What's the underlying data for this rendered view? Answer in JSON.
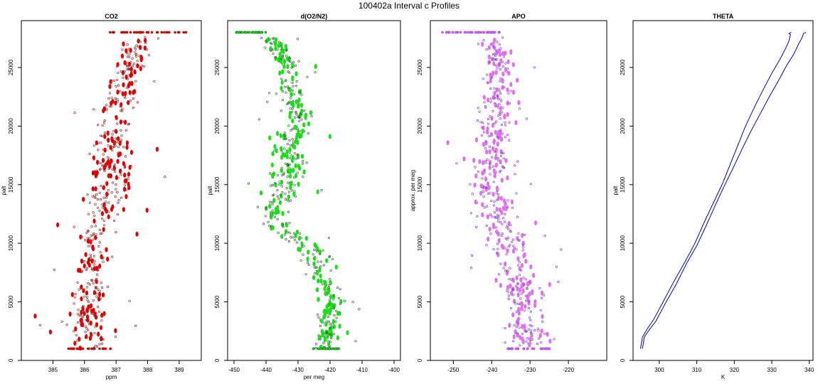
{
  "figure": {
    "title": "100402a   Interval c Profiles"
  },
  "chart_data": [
    {
      "type": "scatter",
      "title": "CO2",
      "xlabel": "ppm",
      "ylabel": "palt",
      "xlim": [
        384.0,
        389.7
      ],
      "ylim": [
        0,
        29000
      ],
      "xticks": [
        385,
        386,
        387,
        388,
        389
      ],
      "xtick_labels": [
        "385",
        "386",
        "387",
        "388",
        "389"
      ],
      "yticks": [
        0,
        5000,
        10000,
        15000,
        20000,
        25000
      ],
      "ytick_labels": [
        "0",
        "5000",
        "10000",
        "15000",
        "20000",
        "25000"
      ],
      "series": [
        {
          "style": "points",
          "color": "#e80000",
          "edge": "#8b1a1a",
          "bands": [
            [
              1000,
              385.4,
              386.9
            ],
            [
              5000,
              385.2,
              386.8
            ],
            [
              10000,
              385.7,
              387.0
            ],
            [
              15000,
              386.0,
              387.7
            ],
            [
              20000,
              386.2,
              387.6
            ],
            [
              25000,
              386.9,
              388.0
            ],
            [
              27500,
              387.1,
              388.4
            ]
          ],
          "top_layer": {
            "y": 28000,
            "x_min": 386.8,
            "x_max": 389.3
          }
        }
      ]
    },
    {
      "type": "scatter",
      "title": "d(O2/N2)",
      "xlabel": "per meg",
      "ylabel": "palt",
      "xlim": [
        -452,
        -398
      ],
      "ylim": [
        0,
        29000
      ],
      "xticks": [
        -450,
        -440,
        -430,
        -420,
        -410,
        -400
      ],
      "xtick_labels": [
        "-450",
        "-440",
        "-430",
        "-420",
        "-410",
        "-400"
      ],
      "yticks": [
        0,
        5000,
        10000,
        15000,
        20000,
        25000
      ],
      "ytick_labels": [
        "0",
        "5000",
        "10000",
        "15000",
        "20000",
        "25000"
      ],
      "series": [
        {
          "style": "points",
          "color": "#18e018",
          "edge": "#1f5f1f",
          "bands": [
            [
              1000,
              -426,
              -417
            ],
            [
              5000,
              -424,
              -415
            ],
            [
              9000,
              -430,
              -418
            ],
            [
              12000,
              -445,
              -432
            ],
            [
              15000,
              -440,
              -428
            ],
            [
              20000,
              -437,
              -424
            ],
            [
              25000,
              -437,
              -428
            ],
            [
              27500,
              -443,
              -433
            ]
          ],
          "top_layer": {
            "y": 28000,
            "x_min": -450,
            "x_max": -440
          }
        }
      ]
    },
    {
      "type": "scatter",
      "title": "APO",
      "xlabel": "",
      "ylabel": "approx. per meg",
      "xlim": [
        -256,
        -210
      ],
      "ylim": [
        0,
        29000
      ],
      "xticks": [
        -250,
        -240,
        -230,
        -220
      ],
      "xtick_labels": [
        "-250",
        "-240",
        "-230",
        "-220"
      ],
      "yticks": [
        0,
        5000,
        10000,
        15000,
        20000,
        25000
      ],
      "ytick_labels": [
        "0",
        "5000",
        "10000",
        "15000",
        "20000",
        "25000"
      ],
      "series": [
        {
          "style": "points",
          "color": "#e070f0",
          "edge": "#8a2be2",
          "bands": [
            [
              1000,
              -236,
              -224
            ],
            [
              5000,
              -238,
              -226
            ],
            [
              10000,
              -242,
              -229
            ],
            [
              15000,
              -247,
              -234
            ],
            [
              20000,
              -245,
              -233
            ],
            [
              25000,
              -242,
              -233
            ],
            [
              27500,
              -244,
              -236
            ]
          ],
          "top_layer": {
            "y": 28000,
            "x_min": -253,
            "x_max": -237
          }
        }
      ]
    },
    {
      "type": "line",
      "title": "THETA",
      "xlabel": "K",
      "ylabel": "palt",
      "xlim": [
        293,
        341
      ],
      "ylim": [
        0,
        29000
      ],
      "xticks": [
        300,
        310,
        320,
        330,
        340
      ],
      "xtick_labels": [
        "300",
        "310",
        "320",
        "330",
        "340"
      ],
      "yticks": [
        0,
        5000,
        10000,
        15000,
        20000,
        25000
      ],
      "ytick_labels": [
        "0",
        "5000",
        "10000",
        "15000",
        "20000",
        "25000"
      ],
      "series": [
        {
          "style": "line",
          "color": "#0000cc",
          "x": [
            295.0,
            295.5,
            296.8,
            298.5,
            301.0,
            304.0,
            307.0,
            309.5,
            312.0,
            314.5,
            317.0,
            319.0,
            321.0,
            323.0,
            325.5,
            328.0,
            330.0,
            332.0,
            333.5,
            334.5,
            335.0,
            334.6,
            335.2
          ],
          "y": [
            1000,
            2000,
            2700,
            3500,
            5000,
            6800,
            8500,
            10000,
            11800,
            13500,
            15200,
            16800,
            18400,
            20000,
            21700,
            23300,
            24500,
            25600,
            26500,
            27200,
            27800,
            27900,
            28000
          ]
        },
        {
          "style": "line",
          "color": "#0000cc",
          "x": [
            295.5,
            296.0,
            297.3,
            299.0,
            301.5,
            304.5,
            307.3,
            310.0,
            312.5,
            315.0,
            317.5,
            319.8,
            322.0,
            324.5,
            327.0,
            329.5,
            332.0,
            334.0,
            335.8,
            337.0,
            338.0,
            338.5,
            339.1
          ],
          "y": [
            1000,
            2000,
            2600,
            3300,
            4800,
            6500,
            8300,
            9800,
            11500,
            13300,
            15000,
            16500,
            18000,
            19600,
            21100,
            22600,
            24000,
            25200,
            26100,
            26900,
            27500,
            27900,
            28000
          ]
        }
      ]
    }
  ]
}
